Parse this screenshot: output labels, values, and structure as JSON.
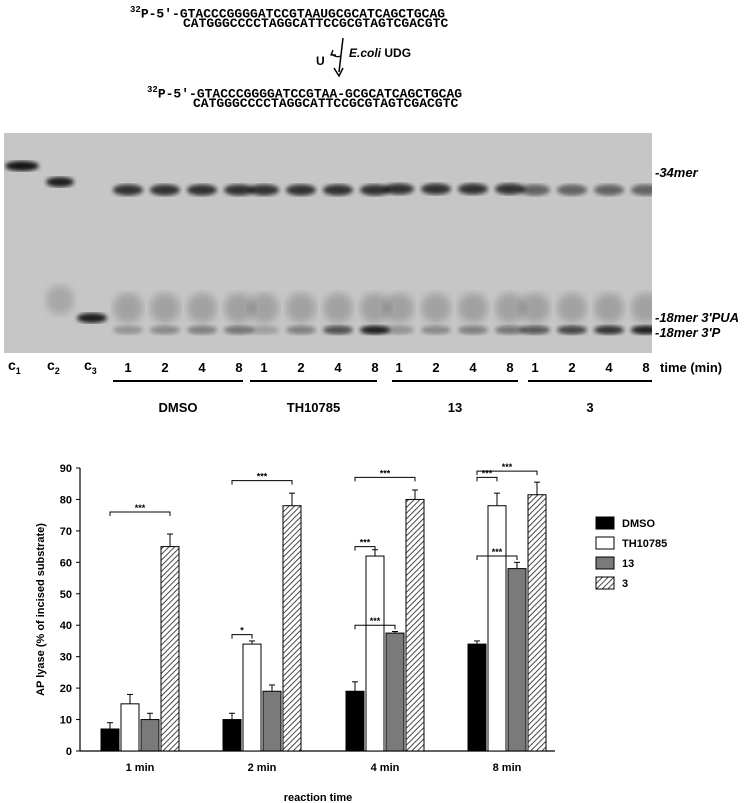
{
  "scheme": {
    "label_32p": "32",
    "p5_prefix": "P-5'-",
    "top_strand_1": "GTACCCGGGGATCCGTAAUGCGCATCAGCTGCAG",
    "bottom_strand_1": "CATGGGCCCCTAGGCATTCCGCGTAGTCGACGTC",
    "arrow_left": "U",
    "enzyme_italic": "E.coli",
    "enzyme_name": "UDG",
    "top_strand_2": "GTACCCGGGGATCCGTAA-GCGCATCAGCTGCAG",
    "bottom_strand_2": "CATGGGCCCCTAGGCATTCCGCGTAGTCGACGTC"
  },
  "gel": {
    "band_labels": [
      "-34mer",
      "-18mer 3'PUA",
      "-18mer 3'P"
    ],
    "controls": [
      "c",
      "c",
      "c"
    ],
    "control_subs": [
      "1",
      "2",
      "3"
    ],
    "lane_times": [
      "1",
      "2",
      "4",
      "8"
    ],
    "time_label": "time (min)",
    "groups": [
      "DMSO",
      "TH10785",
      "13",
      "3"
    ]
  },
  "chart_data": {
    "type": "bar",
    "categories": [
      "1 min",
      "2 min",
      "4 min",
      "8 min"
    ],
    "series": [
      {
        "name": "DMSO",
        "values": [
          7,
          10,
          19,
          34
        ],
        "errors": [
          2,
          2,
          3,
          1
        ],
        "color": "#000000",
        "pattern": "solid"
      },
      {
        "name": "TH10785",
        "values": [
          15,
          34,
          62,
          78
        ],
        "errors": [
          3,
          1,
          2,
          4
        ],
        "color": "#ffffff",
        "pattern": "solid"
      },
      {
        "name": "13",
        "values": [
          10,
          19,
          37.5,
          58
        ],
        "errors": [
          2,
          2,
          0.5,
          2
        ],
        "color": "#7a7a7a",
        "pattern": "solid"
      },
      {
        "name": "3",
        "values": [
          65,
          78,
          80,
          81.5
        ],
        "errors": [
          4,
          4,
          3,
          4
        ],
        "color": "#ffffff",
        "pattern": "hatch"
      }
    ],
    "ylabel": "AP lyase (% of incised substrate)",
    "xlabel": "reaction time",
    "ylim": [
      0,
      90
    ],
    "yticks": [
      0,
      10,
      20,
      30,
      40,
      50,
      60,
      70,
      80,
      90
    ],
    "legend_position": "right",
    "significance": [
      "***",
      "*",
      "***",
      "***",
      "***",
      "***",
      "***",
      "***"
    ]
  }
}
